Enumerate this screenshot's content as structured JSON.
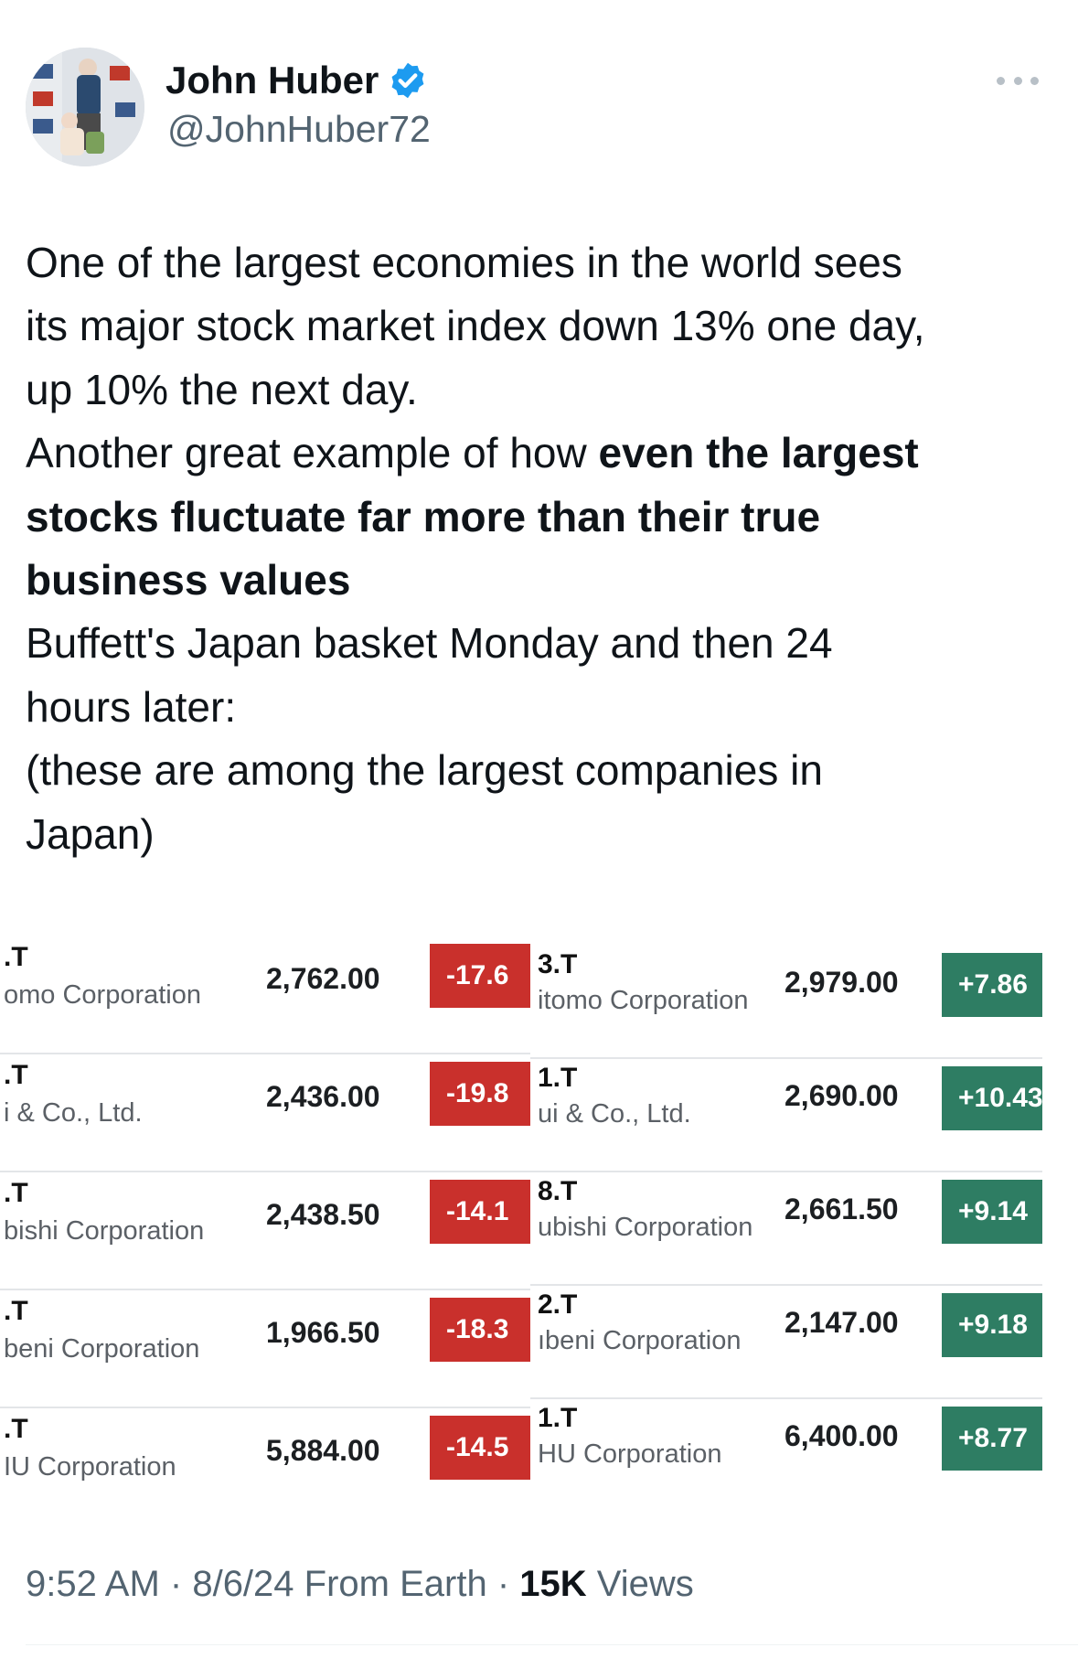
{
  "author": {
    "name": "John Huber",
    "handle": "@JohnHuber72",
    "verified_color": "#1d9bf0",
    "verified_icon": "verified-badge-icon",
    "more_icon": "more-horizontal-icon"
  },
  "tweet": {
    "lines": [
      [
        {
          "text": "One of the largest economies in the world sees",
          "bold": false
        }
      ],
      [
        {
          "text": "its major stock market index down 13% one day,",
          "bold": false
        }
      ],
      [
        {
          "text": "up 10% the next day.",
          "bold": false
        }
      ],
      [
        {
          "text": "Another great example of how ",
          "bold": false
        },
        {
          "text": "even the largest",
          "bold": true
        }
      ],
      [
        {
          "text": "stocks fluctuate far more than their true",
          "bold": true
        }
      ],
      [
        {
          "text": "business values",
          "bold": true
        }
      ],
      [
        {
          "text": "Buffett's Japan basket Monday and then 24",
          "bold": false
        }
      ],
      [
        {
          "text": "hours later:",
          "bold": false
        }
      ],
      [
        {
          "text": "(these are among the largest companies in",
          "bold": false
        }
      ],
      [
        {
          "text": "Japan)",
          "bold": false
        }
      ]
    ]
  },
  "media": {
    "monday": [
      {
        "symbol": ".T",
        "company": "omo Corporation",
        "price": "2,762.00",
        "change": "-17.6"
      },
      {
        "symbol": ".T",
        "company": "i & Co., Ltd.",
        "price": "2,436.00",
        "change": "-19.8"
      },
      {
        "symbol": ".T",
        "company": "bishi Corporation",
        "price": "2,438.50",
        "change": "-14.1"
      },
      {
        "symbol": ".T",
        "company": "beni Corporation",
        "price": "1,966.50",
        "change": "-18.3"
      },
      {
        "symbol": ".T",
        "company": "IU Corporation",
        "price": "5,884.00",
        "change": "-14.5"
      }
    ],
    "tuesday": [
      {
        "symbol": "3.T",
        "company": "itomo Corporation",
        "price": "2,979.00",
        "change": "+7.86"
      },
      {
        "symbol": "1.T",
        "company": "ui & Co., Ltd.",
        "price": "2,690.00",
        "change": "+10.43"
      },
      {
        "symbol": "8.T",
        "company": "ubishi Corporation",
        "price": "2,661.50",
        "change": "+9.14"
      },
      {
        "symbol": "2.T",
        "company": "ıbeni Corporation",
        "price": "2,147.00",
        "change": "+9.18"
      },
      {
        "symbol": "1.T",
        "company": "HU Corporation",
        "price": "6,400.00",
        "change": "+8.77"
      }
    ],
    "colors": {
      "negative": "#c9302c",
      "positive": "#2e7d63"
    }
  },
  "meta": {
    "time": "9:52 AM",
    "date": "8/6/24",
    "source": "From Earth",
    "views_count": "15K",
    "views_label": "Views"
  }
}
